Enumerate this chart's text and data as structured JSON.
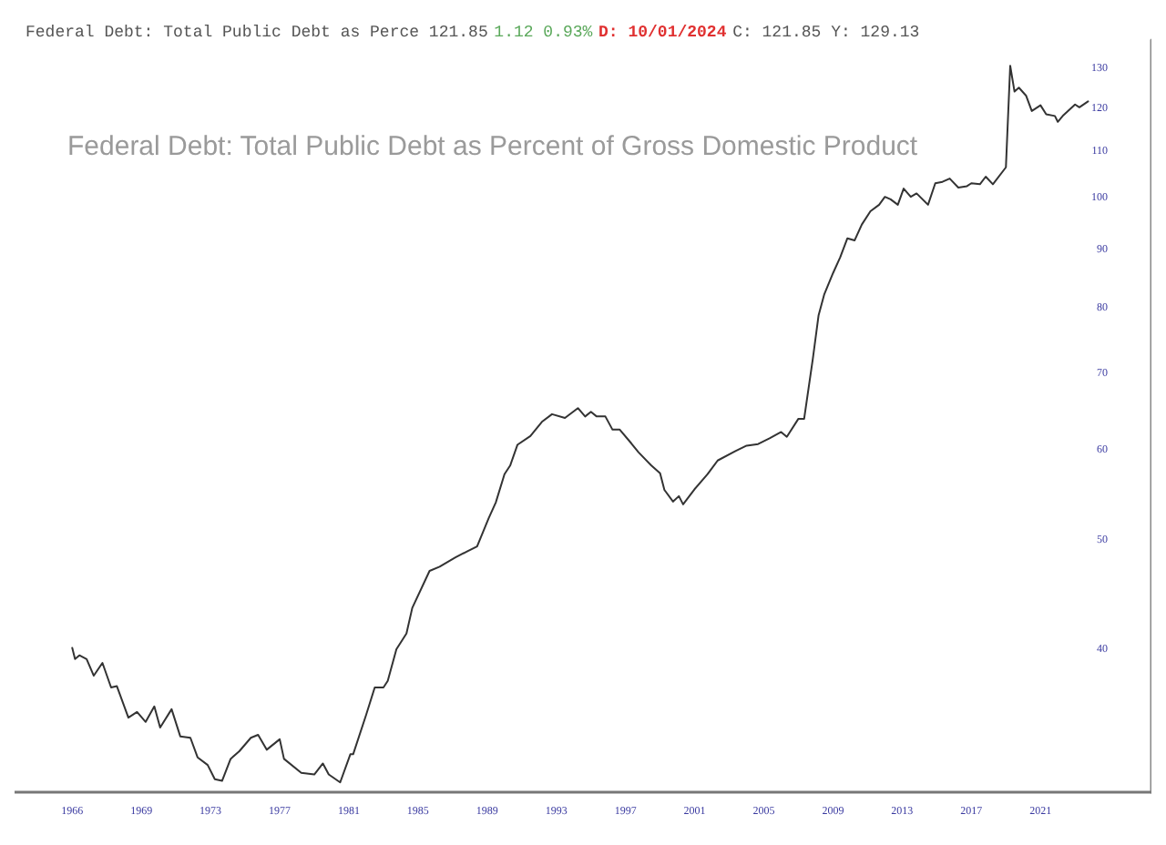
{
  "chart_data": {
    "type": "line",
    "title": "Federal Debt: Total Public Debt as Percent of Gross Domestic Product",
    "annotations": [
      "Federal Debt: Total Public Debt as Perce 121.85",
      "1.12 0.93%",
      "D: 10/01/2024",
      "C: 121.85 Y: 129.13"
    ],
    "x": [
      "1966-01",
      "1966-03",
      "1966-06",
      "1966-11",
      "1967-04",
      "1967-10",
      "1968-04",
      "1968-08",
      "1969-04",
      "1969-10",
      "1970-04",
      "1970-10",
      "1971-02",
      "1971-10",
      "1972-04",
      "1972-11",
      "1973-04",
      "1973-11",
      "1974-04",
      "1974-09",
      "1975-03",
      "1975-09",
      "1976-05",
      "1976-10",
      "1977-04",
      "1978-01",
      "1978-04",
      "1979-04",
      "1980-01",
      "1980-07",
      "1980-11",
      "1981-07",
      "1982-02",
      "1982-04",
      "1983-01",
      "1983-07",
      "1984-01",
      "1984-04",
      "1984-10",
      "1985-05",
      "1985-09",
      "1986-09",
      "1987-04",
      "1988-03",
      "1988-11",
      "1989-06",
      "1990-02",
      "1990-07",
      "1991-01",
      "1991-05",
      "1991-10",
      "1992-07",
      "1993-03",
      "1993-10",
      "1994-07",
      "1995-04",
      "1995-09",
      "1996-01",
      "1996-05",
      "1996-11",
      "1997-04",
      "1997-09",
      "1998-05",
      "1998-10",
      "1999-07",
      "2000-01",
      "2000-04",
      "2000-10",
      "2001-02",
      "2001-05",
      "2002-01",
      "2002-10",
      "2003-05",
      "2004-05",
      "2005-01",
      "2005-09",
      "2006-05",
      "2007-01",
      "2007-05",
      "2008-01",
      "2008-05",
      "2008-11",
      "2009-03",
      "2009-07",
      "2010-01",
      "2010-06",
      "2010-11",
      "2011-04",
      "2011-09",
      "2012-03",
      "2012-09",
      "2013-01",
      "2013-05",
      "2013-10",
      "2014-02",
      "2014-07",
      "2014-11",
      "2015-07",
      "2015-12",
      "2016-05",
      "2016-10",
      "2017-04",
      "2017-10",
      "2018-01",
      "2018-07",
      "2018-11",
      "2019-04",
      "2020-01",
      "2020-04",
      "2020-07",
      "2020-10",
      "2021-03",
      "2021-07",
      "2022-01",
      "2022-05",
      "2022-11",
      "2023-01",
      "2023-05",
      "2024-01",
      "2024-04",
      "2024-10"
    ],
    "series": [
      {
        "color": "#333333",
        "values": [
          40.2,
          39.3,
          39.6,
          39.3,
          38.0,
          39.0,
          37.1,
          37.2,
          34.9,
          35.3,
          34.6,
          35.7,
          34.2,
          35.5,
          33.6,
          33.5,
          32.2,
          31.7,
          30.8,
          30.7,
          32.1,
          32.6,
          33.5,
          33.7,
          32.7,
          33.4,
          32.1,
          31.2,
          31.1,
          31.8,
          31.1,
          30.6,
          32.4,
          32.4,
          35.1,
          37.1,
          37.1,
          37.6,
          40.1,
          41.4,
          43.6,
          47.0,
          47.4,
          48.3,
          48.9,
          49.4,
          52.3,
          54.0,
          57.2,
          58.2,
          60.7,
          61.8,
          63.6,
          64.6,
          64.1,
          65.4,
          64.3,
          64.9,
          64.3,
          64.3,
          62.6,
          62.6,
          60.9,
          59.8,
          58.2,
          57.3,
          55.4,
          54.1,
          54.7,
          53.8,
          55.5,
          57.2,
          58.8,
          59.9,
          60.6,
          60.8,
          61.5,
          62.3,
          61.7,
          64.0,
          64.0,
          72.3,
          78.9,
          82.4,
          86.0,
          88.8,
          92.3,
          91.9,
          94.9,
          97.5,
          98.8,
          100.4,
          99.9,
          98.8,
          102.1,
          100.4,
          101.1,
          98.8,
          103.2,
          103.5,
          104.2,
          102.3,
          102.6,
          103.2,
          103.0,
          104.6,
          103.0,
          106.6,
          131.0,
          124.3,
          125.3,
          123.3,
          119.5,
          120.9,
          118.7,
          118.3,
          116.9,
          118.5,
          121.1,
          120.4,
          121.85
        ]
      }
    ],
    "log": "y",
    "xlim": [
      "1962-09",
      "2028-06"
    ],
    "xticks": [
      {
        "value": "1966-01-01",
        "label": "1966"
      },
      {
        "value": "1969-12-31",
        "label": "1969"
      },
      {
        "value": "1973-12-31",
        "label": "1973"
      },
      {
        "value": "1977-12-31",
        "label": "1977"
      },
      {
        "value": "1981-12-31",
        "label": "1981"
      },
      {
        "value": "1985-12-31",
        "label": "1985"
      },
      {
        "value": "1989-12-31",
        "label": "1989"
      },
      {
        "value": "1993-12-31",
        "label": "1993"
      },
      {
        "value": "1997-12-31",
        "label": "1997"
      },
      {
        "value": "2001-12-31",
        "label": "2001"
      },
      {
        "value": "2005-12-31",
        "label": "2005"
      },
      {
        "value": "2009-12-31",
        "label": "2009"
      },
      {
        "value": "2013-12-31",
        "label": "2013"
      },
      {
        "value": "2017-12-31",
        "label": "2017"
      },
      {
        "value": "2021-12-31",
        "label": "2021"
      }
    ],
    "ylim": [
      30,
      138
    ],
    "yticks": [
      40,
      50,
      60,
      70,
      80,
      90,
      100,
      110,
      120,
      130
    ],
    "grid": false,
    "marker": "none",
    "line_style": "solid"
  }
}
